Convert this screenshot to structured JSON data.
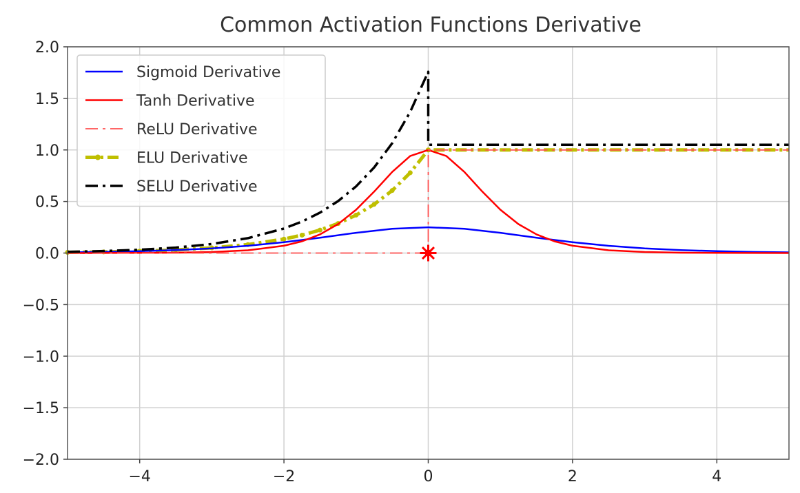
{
  "chart_data": {
    "type": "line",
    "title": "Common Activation Functions Derivative",
    "xlabel": "",
    "ylabel": "",
    "xlim": [
      -5,
      5
    ],
    "ylim": [
      -2,
      2
    ],
    "xticks": [
      -4,
      -2,
      0,
      2,
      4
    ],
    "xtick_labels": [
      "−4",
      "−2",
      "0",
      "2",
      "4"
    ],
    "yticks": [
      2.0,
      1.5,
      1.0,
      0.5,
      0.0,
      -0.5,
      -1.0,
      -1.5,
      -2.0
    ],
    "ytick_labels": [
      "2.0",
      "1.5",
      "1.0",
      "0.5",
      "0.0",
      "−0.5",
      "−1.0",
      "−1.5",
      "−2.0"
    ],
    "grid": true,
    "legend_position": "top-left",
    "series": [
      {
        "name": "Sigmoid Derivative",
        "color": "#0000ff",
        "style": "solid",
        "x": [
          -5,
          -4.5,
          -4,
          -3.5,
          -3,
          -2.5,
          -2,
          -1.5,
          -1,
          -0.5,
          0,
          0.5,
          1,
          1.5,
          2,
          2.5,
          3,
          3.5,
          4,
          4.5,
          5
        ],
        "y": [
          0.0066,
          0.0109,
          0.0177,
          0.0285,
          0.0452,
          0.0701,
          0.105,
          0.1491,
          0.1966,
          0.235,
          0.25,
          0.235,
          0.1966,
          0.1491,
          0.105,
          0.0701,
          0.0452,
          0.0285,
          0.0177,
          0.0109,
          0.0066
        ]
      },
      {
        "name": "Tanh Derivative",
        "color": "#ff0000",
        "style": "solid",
        "x": [
          -5,
          -4.5,
          -4,
          -3.5,
          -3,
          -2.5,
          -2,
          -1.75,
          -1.5,
          -1.25,
          -1,
          -0.75,
          -0.5,
          -0.25,
          0,
          0.25,
          0.5,
          0.75,
          1,
          1.25,
          1.5,
          1.75,
          2,
          2.5,
          3,
          3.5,
          4,
          4.5,
          5
        ],
        "y": [
          0.0002,
          0.0005,
          0.0013,
          0.0036,
          0.0099,
          0.0266,
          0.0707,
          0.1138,
          0.1807,
          0.2802,
          0.42,
          0.5954,
          0.7864,
          0.9411,
          1.0,
          0.9411,
          0.7864,
          0.5954,
          0.42,
          0.2802,
          0.1807,
          0.1138,
          0.0707,
          0.0266,
          0.0099,
          0.0036,
          0.0013,
          0.0005,
          0.0002
        ]
      },
      {
        "name": "ReLU Derivative",
        "color": "#ff5050",
        "style": "dashdot",
        "x": [
          -5,
          0,
          0,
          5
        ],
        "y": [
          0,
          0,
          1,
          1
        ]
      },
      {
        "name": "ELU Derivative",
        "color": "#bfbf00",
        "style": "dashdot-dot",
        "x": [
          -5,
          -4.5,
          -4,
          -3.5,
          -3,
          -2.5,
          -2,
          -1.75,
          -1.5,
          -1.25,
          -1,
          -0.75,
          -0.5,
          -0.25,
          0,
          0,
          1,
          2,
          3,
          4,
          5
        ],
        "y": [
          0.0067,
          0.0111,
          0.0183,
          0.0302,
          0.0498,
          0.0821,
          0.1353,
          0.1738,
          0.2231,
          0.2865,
          0.3679,
          0.4724,
          0.6065,
          0.7788,
          1.0,
          1.0,
          1.0,
          1.0,
          1.0,
          1.0,
          1.0
        ]
      },
      {
        "name": "SELU Derivative",
        "color": "#000000",
        "style": "dashdot",
        "x": [
          -5,
          -4.5,
          -4,
          -3.5,
          -3,
          -2.5,
          -2,
          -1.75,
          -1.5,
          -1.25,
          -1,
          -0.75,
          -0.5,
          -0.25,
          0,
          0,
          1,
          2,
          3,
          4,
          5
        ],
        "y": [
          0.0118,
          0.0195,
          0.0322,
          0.053,
          0.0875,
          0.1442,
          0.2379,
          0.3054,
          0.3922,
          0.5035,
          0.6466,
          0.8302,
          1.066,
          1.3688,
          1.7581,
          1.0507,
          1.0507,
          1.0507,
          1.0507,
          1.0507,
          1.0507
        ]
      }
    ],
    "markers": [
      {
        "series": "ReLU Derivative",
        "x": 0,
        "y": 0,
        "symbol": "star",
        "color": "#ff0000"
      }
    ]
  }
}
